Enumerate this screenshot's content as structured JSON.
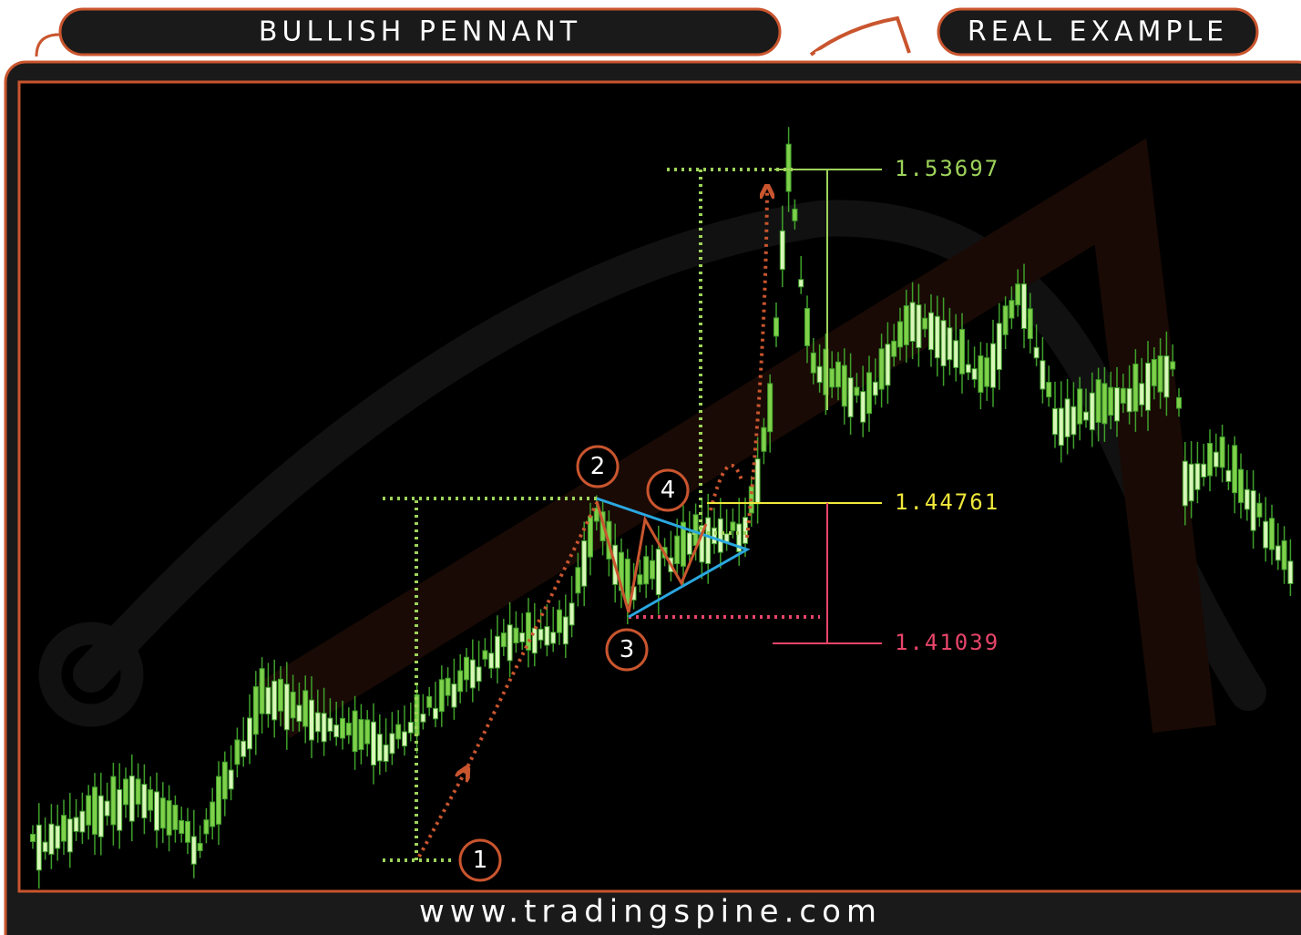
{
  "header": {
    "title": "BULLISH PENNANT",
    "tab": "REAL EXAMPLE"
  },
  "levels": [
    {
      "label": "1.53697"
    },
    {
      "label": "1.44761"
    },
    {
      "label": "1.41039"
    }
  ],
  "points": [
    {
      "label": "1"
    },
    {
      "label": "2"
    },
    {
      "label": "3"
    },
    {
      "label": "4"
    }
  ],
  "footer": {
    "url": "www.tradingspine.com"
  }
}
